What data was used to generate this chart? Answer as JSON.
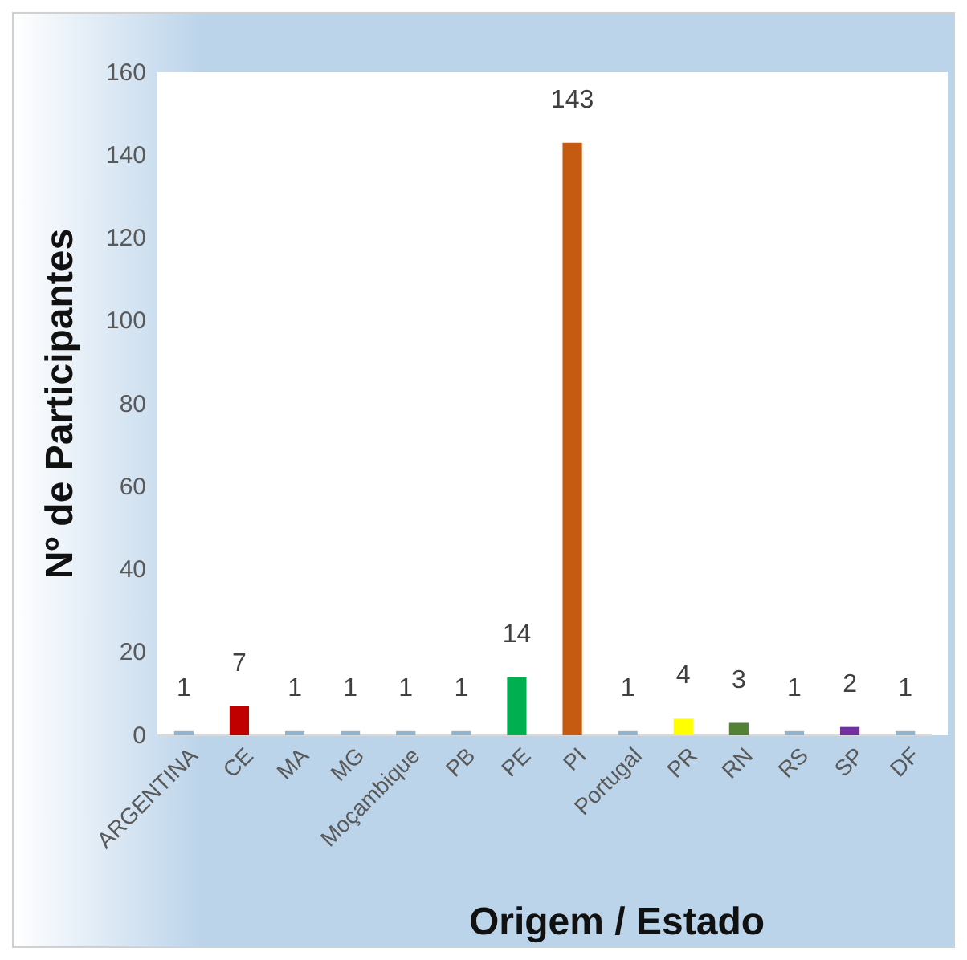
{
  "chart_data": {
    "type": "bar",
    "xlabel": "Origem / Estado",
    "ylabel": "Nº de Participantes",
    "categories": [
      "ARGENTINA",
      "CE",
      "MA",
      "MG",
      "Moçambique",
      "PB",
      "PE",
      "PI",
      "Portugal",
      "PR",
      "RN",
      "RS",
      "SP",
      "DF"
    ],
    "values": [
      1,
      7,
      1,
      1,
      1,
      1,
      14,
      143,
      1,
      4,
      3,
      1,
      2,
      1
    ],
    "colors": [
      "#8fb4d0",
      "#c00000",
      "#8fb4d0",
      "#8fb4d0",
      "#8fb4d0",
      "#8fb4d0",
      "#00b050",
      "#c55a11",
      "#8fb4d0",
      "#ffff00",
      "#548235",
      "#8fb4d0",
      "#7030a0",
      "#8fb4d0"
    ],
    "ylim": [
      0,
      160
    ],
    "yticks": [
      0,
      20,
      40,
      60,
      80,
      100,
      120,
      140,
      160
    ],
    "data_labels": true,
    "grid": false
  }
}
